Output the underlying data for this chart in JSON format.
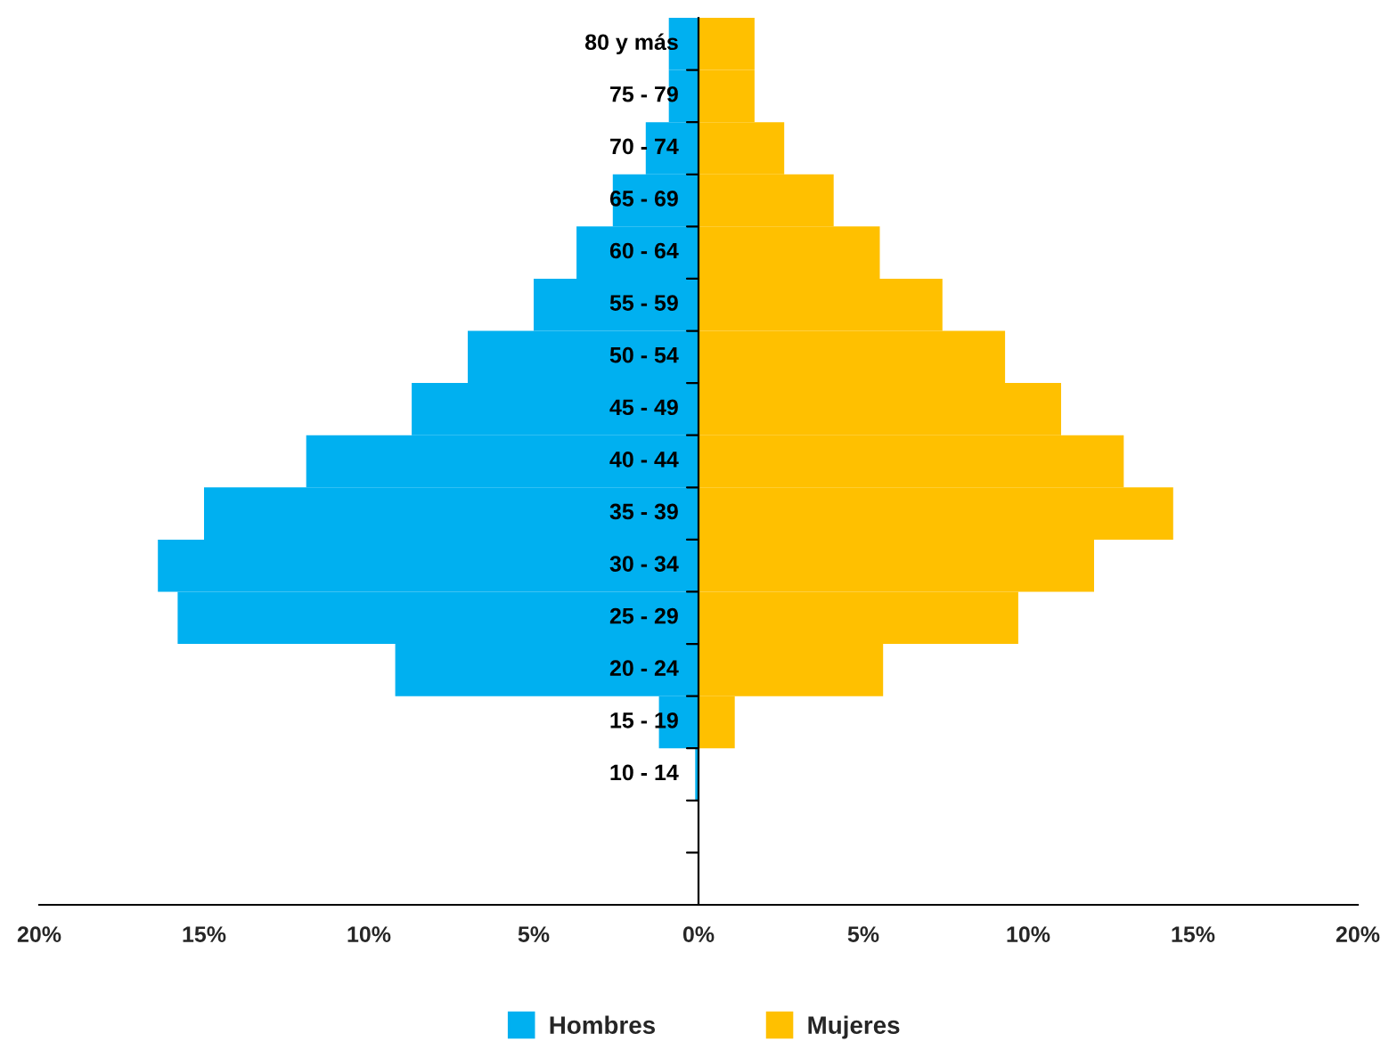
{
  "chart_data": {
    "type": "bar",
    "orientation": "horizontal",
    "categories": [
      "80 y más",
      "75 - 79",
      "70 - 74",
      "65 - 69",
      "60 - 64",
      "55 - 59",
      "50 - 54",
      "45 - 49",
      "40 - 44",
      "35 - 39",
      "30 - 34",
      "25 - 29",
      "20 - 24",
      "15 - 19",
      "10 - 14",
      null,
      null
    ],
    "series": [
      {
        "name": "Hombres",
        "color": "#00b0f0",
        "values": [
          -0.9,
          -0.9,
          -1.6,
          -2.6,
          -3.7,
          -5.0,
          -7.0,
          -8.7,
          -11.9,
          -15.0,
          -16.4,
          -15.8,
          -9.2,
          -1.2,
          -0.1,
          0,
          0
        ]
      },
      {
        "name": "Mujeres",
        "color": "#ffc000",
        "values": [
          1.7,
          1.7,
          2.6,
          4.1,
          5.5,
          7.4,
          9.3,
          11.0,
          12.9,
          14.4,
          12.0,
          9.7,
          5.6,
          1.1,
          0,
          0,
          0
        ]
      }
    ],
    "xlim": [
      -20,
      20
    ],
    "xticks": [
      {
        "value": -20,
        "label": "20%"
      },
      {
        "value": -15,
        "label": "15%"
      },
      {
        "value": -10,
        "label": "10%"
      },
      {
        "value": -5,
        "label": "5%"
      },
      {
        "value": 0,
        "label": "0%"
      },
      {
        "value": 5,
        "label": "5%"
      },
      {
        "value": 10,
        "label": "10%"
      },
      {
        "value": 15,
        "label": "15%"
      },
      {
        "value": 20,
        "label": "20%"
      }
    ],
    "grid": false,
    "legend": "bottom",
    "stacked": true
  }
}
